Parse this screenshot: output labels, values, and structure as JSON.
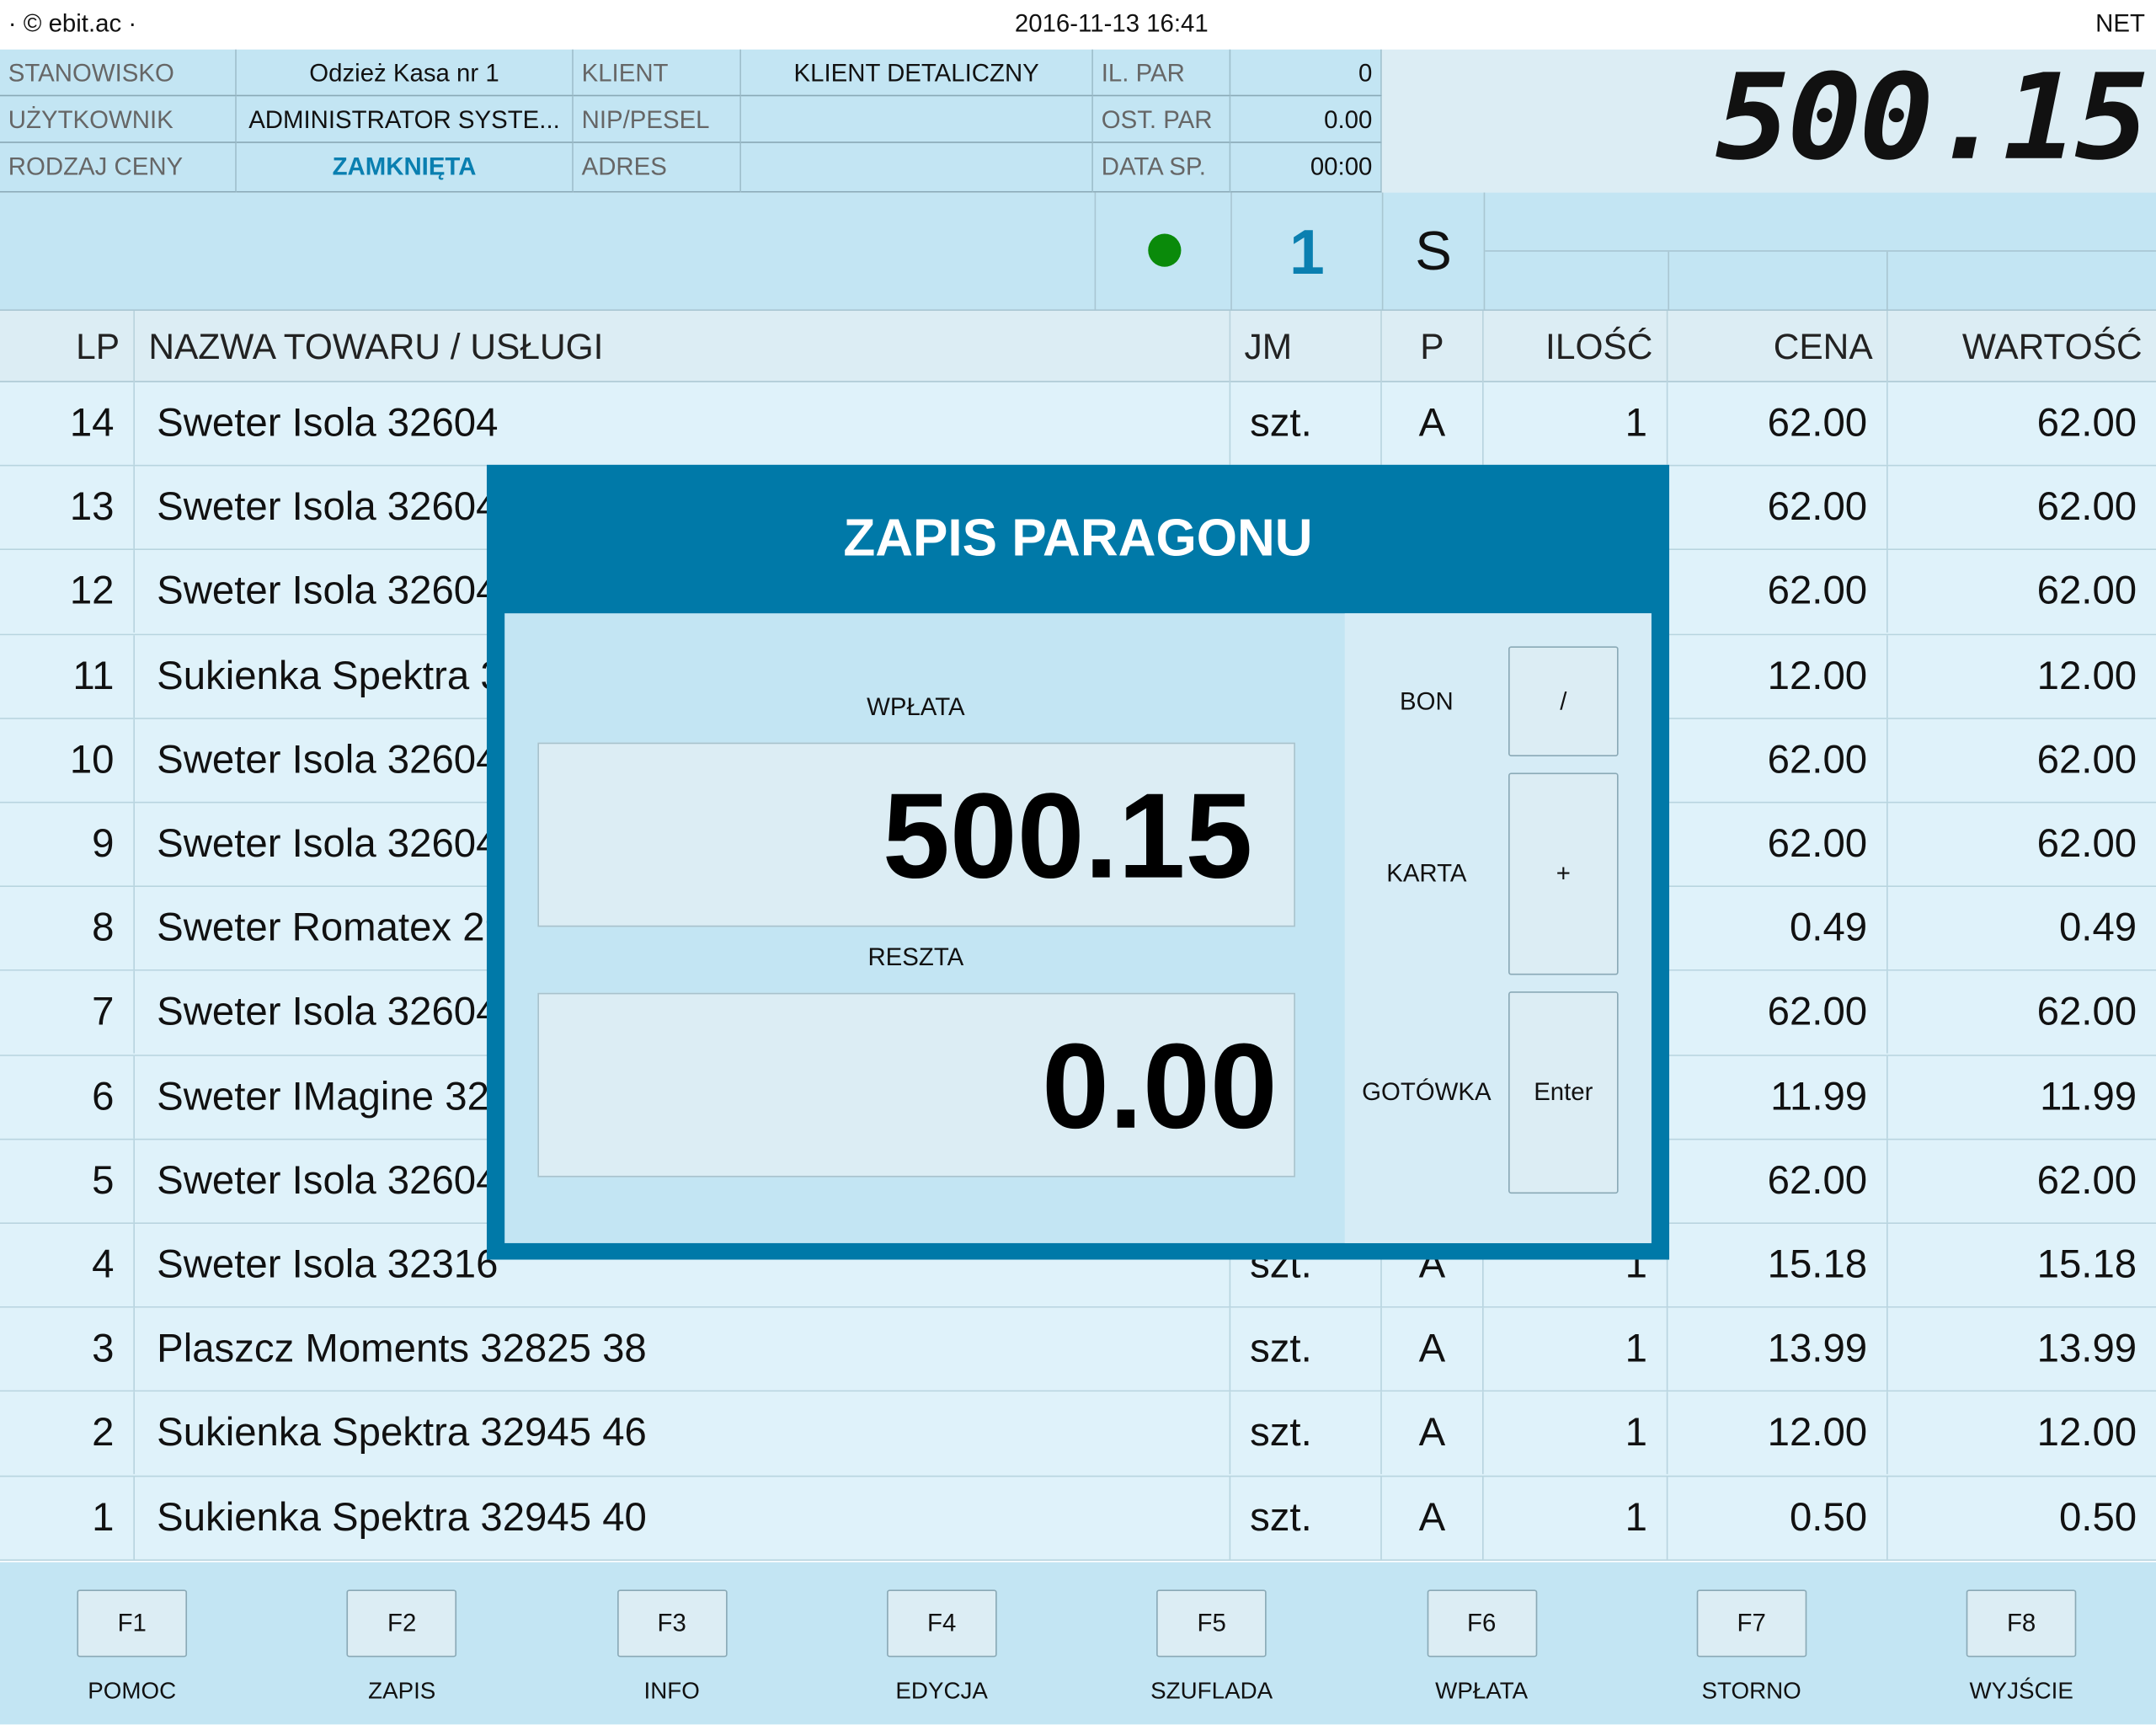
{
  "topbar": {
    "brand": "· © ebit.ac ·",
    "datetime": "2016-11-13 16:41",
    "mode": "NET"
  },
  "info": {
    "stanowisko_label": "STANOWISKO",
    "stanowisko_value": "Odzież Kasa nr 1",
    "uzytkownik_label": "UŻYTKOWNIK",
    "uzytkownik_value": "ADMINISTRATOR SYSTE...",
    "rodzaj_ceny_label": "RODZAJ CENY",
    "rodzaj_ceny_value": "ZAMKNIĘTA",
    "klient_label": "KLIENT",
    "klient_value": "KLIENT DETALICZNY",
    "nip_label": "NIP/PESEL",
    "nip_value": "",
    "adres_label": "ADRES",
    "adres_value": "",
    "il_par_label": "IL. PAR",
    "il_par_value": "0",
    "ost_par_label": "OST. PAR",
    "ost_par_value": "0.00",
    "data_sp_label": "DATA SP.",
    "data_sp_value": "00:00"
  },
  "total_display": "500.15",
  "status": {
    "indicator_color": "#0a8a0a",
    "counter": "1",
    "mode_letter": "S"
  },
  "table": {
    "headers": {
      "lp": "LP",
      "name": "NAZWA TOWARU / USŁUGI",
      "jm": "JM",
      "p": "P",
      "qty": "ILOŚĆ",
      "price": "CENA",
      "value": "WARTOŚĆ"
    },
    "rows": [
      {
        "lp": "14",
        "name": "Sweter Isola 32604",
        "jm": "szt.",
        "p": "A",
        "qty": "1",
        "price": "62.00",
        "value": "62.00"
      },
      {
        "lp": "13",
        "name": "Sweter Isola 32604",
        "jm": "",
        "p": "",
        "qty": "",
        "price": "62.00",
        "value": "62.00"
      },
      {
        "lp": "12",
        "name": "Sweter Isola 32604",
        "jm": "",
        "p": "",
        "qty": "",
        "price": "62.00",
        "value": "62.00"
      },
      {
        "lp": "11",
        "name": "Sukienka Spektra 3",
        "jm": "",
        "p": "",
        "qty": "",
        "price": "12.00",
        "value": "12.00"
      },
      {
        "lp": "10",
        "name": "Sweter Isola 32604",
        "jm": "",
        "p": "",
        "qty": "",
        "price": "62.00",
        "value": "62.00"
      },
      {
        "lp": "9",
        "name": "Sweter Isola 32604",
        "jm": "",
        "p": "",
        "qty": "",
        "price": "62.00",
        "value": "62.00"
      },
      {
        "lp": "8",
        "name": "Sweter Romatex 29",
        "jm": "",
        "p": "",
        "qty": "",
        "price": "0.49",
        "value": "0.49"
      },
      {
        "lp": "7",
        "name": "Sweter Isola 32604",
        "jm": "",
        "p": "",
        "qty": "",
        "price": "62.00",
        "value": "62.00"
      },
      {
        "lp": "6",
        "name": "Sweter IMagine 32",
        "jm": "",
        "p": "",
        "qty": "",
        "price": "11.99",
        "value": "11.99"
      },
      {
        "lp": "5",
        "name": "Sweter Isola 32604",
        "jm": "",
        "p": "",
        "qty": "",
        "price": "62.00",
        "value": "62.00"
      },
      {
        "lp": "4",
        "name": "Sweter Isola 32316",
        "jm": "szt.",
        "p": "A",
        "qty": "1",
        "price": "15.18",
        "value": "15.18"
      },
      {
        "lp": "3",
        "name": "Plaszcz Moments 32825 38",
        "jm": "szt.",
        "p": "A",
        "qty": "1",
        "price": "13.99",
        "value": "13.99"
      },
      {
        "lp": "2",
        "name": "Sukienka Spektra 32945 46",
        "jm": "szt.",
        "p": "A",
        "qty": "1",
        "price": "12.00",
        "value": "12.00"
      },
      {
        "lp": "1",
        "name": "Sukienka Spektra 32945 40",
        "jm": "szt.",
        "p": "A",
        "qty": "1",
        "price": "0.50",
        "value": "0.50"
      }
    ]
  },
  "dialog": {
    "title": "ZAPIS PARAGONU",
    "wplata_label": "WPŁATA",
    "wplata_value": "500.15",
    "reszta_label": "RESZTA",
    "reszta_value": "0.00",
    "bon_label": "BON",
    "bon_key": "/",
    "karta_label": "KARTA",
    "karta_key": "+",
    "gotowka_label": "GOTÓWKA",
    "gotowka_key": "Enter"
  },
  "footer": [
    {
      "key": "F1",
      "label": "POMOC"
    },
    {
      "key": "F2",
      "label": "ZAPIS"
    },
    {
      "key": "F3",
      "label": "INFO"
    },
    {
      "key": "F4",
      "label": "EDYCJA"
    },
    {
      "key": "F5",
      "label": "SZUFLADA"
    },
    {
      "key": "F6",
      "label": "WPŁATA"
    },
    {
      "key": "F7",
      "label": "STORNO"
    },
    {
      "key": "F8",
      "label": "WYJŚCIE"
    }
  ],
  "colors": {
    "accent": "#0079a8",
    "panel": "#c3e5f3",
    "row": "#dff2fa",
    "highlight_text": "#0a7fb0"
  }
}
